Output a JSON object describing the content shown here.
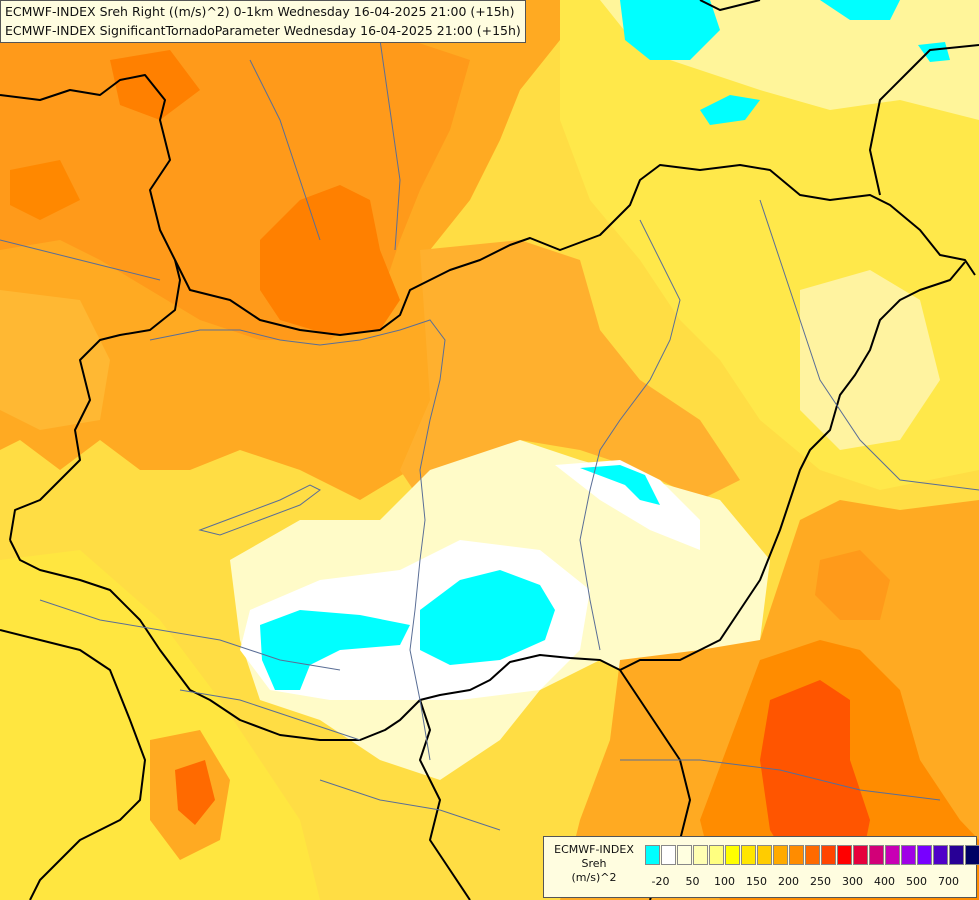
{
  "map": {
    "title_line1": "ECMWF-INDEX Sreh Right ((m/s)^2) 0-1km Wednesday 16-04-2025 21:00 (+15h)",
    "title_line2": "ECMWF-INDEX SignificantTornadoParameter Wednesday 16-04-2025 21:00 (+15h)"
  },
  "legend": {
    "title_line1": "ECMWF-INDEX",
    "title_line2": "Sreh",
    "title_line3": "(m/s)^2",
    "swatch_colors": [
      "#00ffff",
      "#ffffff",
      "#ffffe0",
      "#ffffb3",
      "#ffff80",
      "#ffff00",
      "#ffe600",
      "#ffcc00",
      "#ffaa00",
      "#ff8c00",
      "#ff6a00",
      "#ff4500",
      "#ff0000",
      "#e6003c",
      "#d20078",
      "#c800b4",
      "#a000e6",
      "#7800ff",
      "#5000c8",
      "#280096",
      "#000064"
    ],
    "tick_labels": [
      "-20",
      "50",
      "100",
      "150",
      "200",
      "250",
      "300",
      "400",
      "500",
      "700"
    ]
  },
  "colors": {
    "background": "#ffd966",
    "boundary": "#000000",
    "river": "#5a6e96"
  }
}
